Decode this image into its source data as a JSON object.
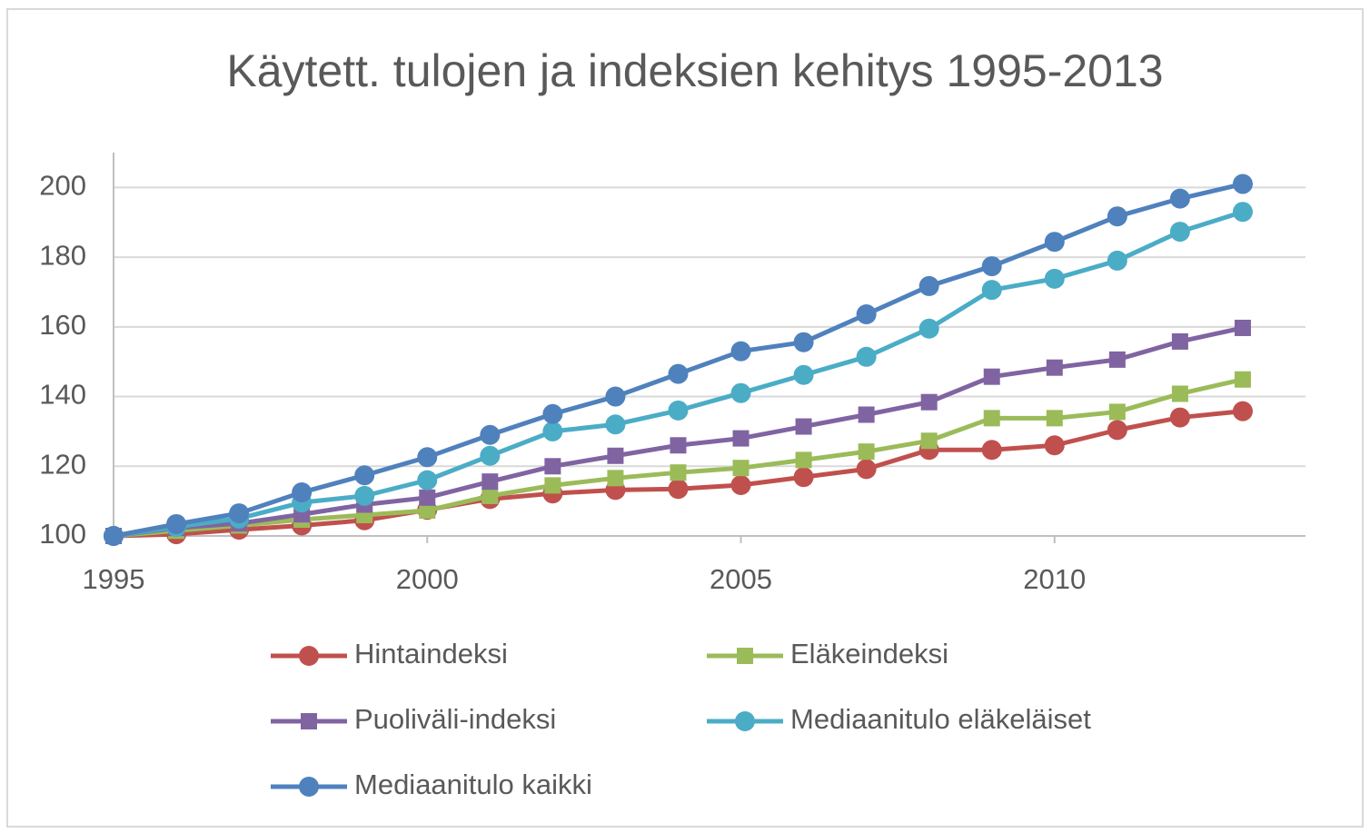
{
  "chart_data": {
    "type": "line",
    "title": "Käytett. tulojen ja indeksien kehitys 1995-2013",
    "x": [
      1995,
      1996,
      1997,
      1998,
      1999,
      2000,
      2001,
      2002,
      2003,
      2004,
      2005,
      2006,
      2007,
      2008,
      2009,
      2010,
      2011,
      2012,
      2013
    ],
    "xlim": [
      1995,
      2014
    ],
    "xticks": [
      1995,
      2000,
      2005,
      2010
    ],
    "ylim": [
      100,
      210
    ],
    "yticks": [
      100,
      120,
      140,
      160,
      180,
      200
    ],
    "grid": true,
    "legend": "bottom",
    "series": [
      {
        "name": "Hintaindeksi",
        "color": "#c0504d",
        "marker": "circle",
        "values": [
          100,
          100.5,
          101.8,
          103,
          104.5,
          107.5,
          110.6,
          112.2,
          113.2,
          113.5,
          114.6,
          116.9,
          119.2,
          124.7,
          124.7,
          126,
          130.4,
          134,
          135.8
        ]
      },
      {
        "name": "Eläkeindeksi",
        "color": "#9bbb59",
        "marker": "square",
        "values": [
          100,
          101.5,
          103,
          104.7,
          106,
          107.3,
          111.5,
          114.5,
          116.6,
          118.2,
          119.5,
          121.8,
          124.2,
          127.3,
          133.8,
          133.8,
          135.6,
          140.8,
          144.9
        ]
      },
      {
        "name": "Puoliväli-indeksi",
        "color": "#8064a2",
        "marker": "square",
        "values": [
          100,
          102.3,
          103.6,
          106.2,
          109,
          111,
          115.6,
          120,
          123,
          126,
          128,
          131.4,
          134.8,
          138.4,
          145.7,
          148.3,
          150.6,
          155.8,
          159.7
        ]
      },
      {
        "name": "Mediaanitulo eläkeläiset",
        "color": "#4bacc6",
        "marker": "circle",
        "values": [
          100,
          102.6,
          105,
          109.6,
          111.5,
          116,
          123,
          130,
          132,
          136,
          141,
          146.2,
          151.4,
          159.5,
          170.6,
          173.8,
          179,
          187.3,
          193
        ]
      },
      {
        "name": "Mediaanitulo kaikki",
        "color": "#4f81bd",
        "marker": "circle",
        "values": [
          100,
          103.4,
          106.5,
          112.5,
          117.4,
          122.6,
          129,
          135,
          140,
          146.5,
          153,
          155.6,
          163.6,
          171.7,
          177.4,
          184.4,
          191.7,
          196.8,
          201
        ]
      }
    ]
  }
}
